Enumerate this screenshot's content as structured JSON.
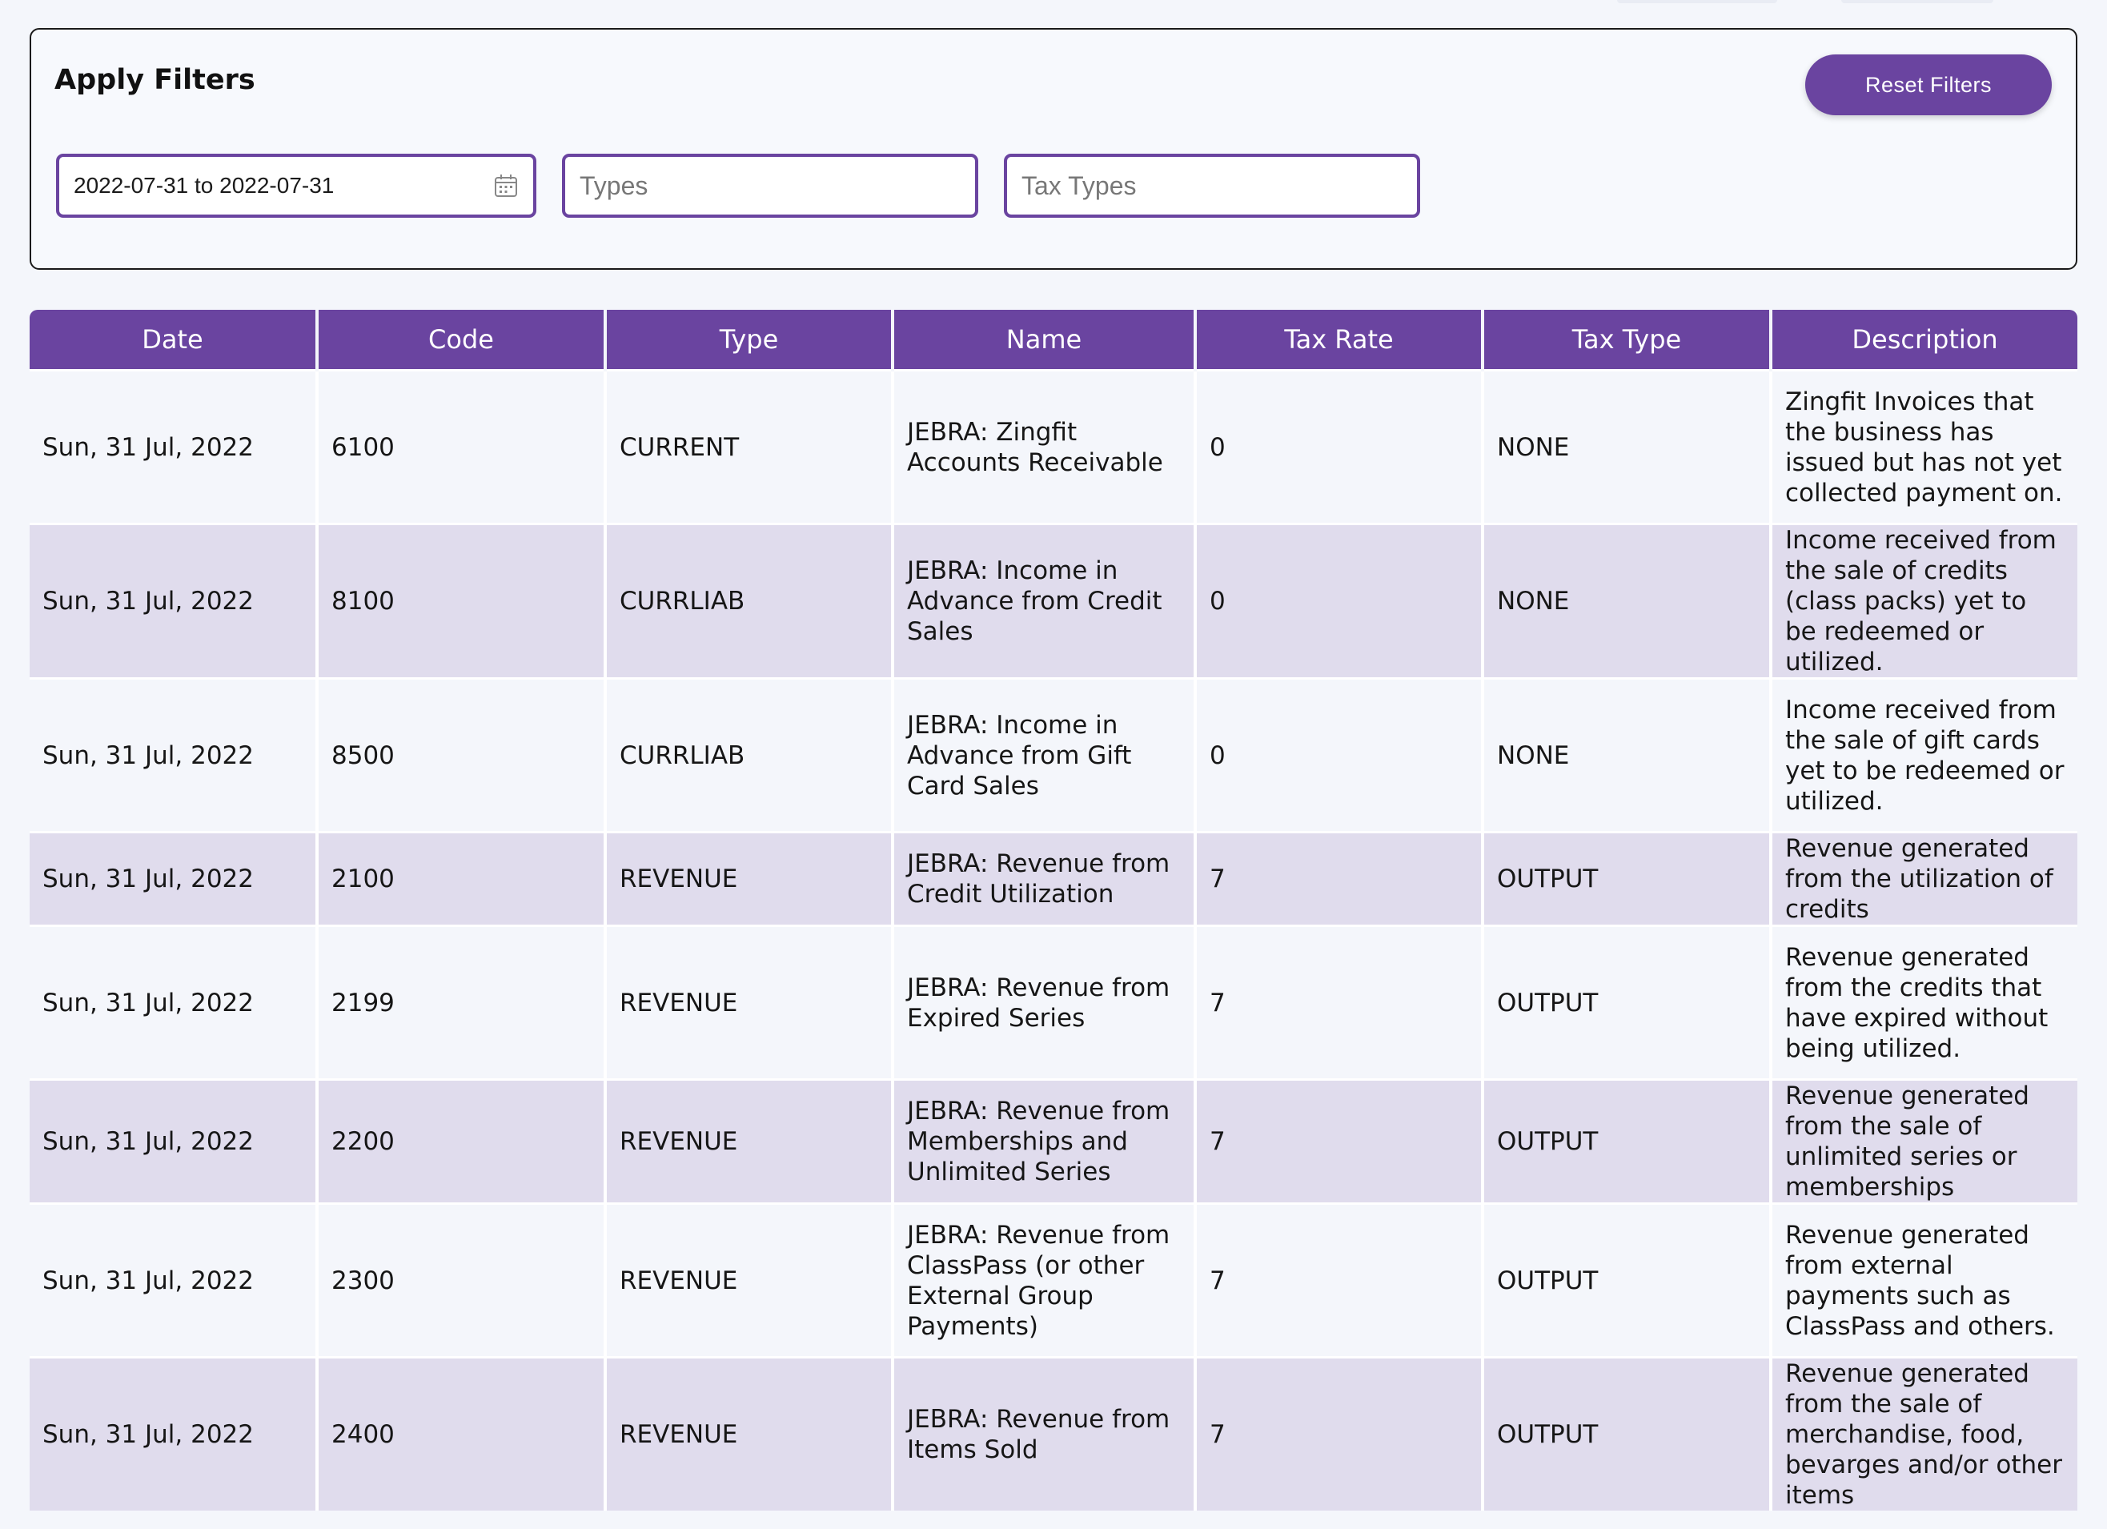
{
  "filters": {
    "title": "Apply Filters",
    "reset_label": "Reset Filters",
    "date_range": "2022-07-31 to 2022-07-31",
    "types_placeholder": "Types",
    "tax_types_placeholder": "Tax Types",
    "calendar_icon": "calendar-icon"
  },
  "table": {
    "headers": [
      "Date",
      "Code",
      "Type",
      "Name",
      "Tax Rate",
      "Tax Type",
      "Description"
    ],
    "rows": [
      {
        "date": "Sun, 31 Jul, 2022",
        "code": "6100",
        "type": "CURRENT",
        "name": "JEBRA: Zingfit Accounts Receivable",
        "tax_rate": "0",
        "tax_type": "NONE",
        "description": "Zingfit Invoices that the business has issued but has not yet collected payment on."
      },
      {
        "date": "Sun, 31 Jul, 2022",
        "code": "8100",
        "type": "CURRLIAB",
        "name": "JEBRA: Income in Advance from Credit Sales",
        "tax_rate": "0",
        "tax_type": "NONE",
        "description": "Income received from the sale of credits (class packs) yet to be redeemed or utilized."
      },
      {
        "date": "Sun, 31 Jul, 2022",
        "code": "8500",
        "type": "CURRLIAB",
        "name": "JEBRA: Income in Advance from Gift Card Sales",
        "tax_rate": "0",
        "tax_type": "NONE",
        "description": "Income received from the sale of gift cards yet to be redeemed or utilized."
      },
      {
        "date": "Sun, 31 Jul, 2022",
        "code": "2100",
        "type": "REVENUE",
        "name": "JEBRA: Revenue from Credit Utilization",
        "tax_rate": "7",
        "tax_type": "OUTPUT",
        "description": "Revenue generated from the utilization of credits"
      },
      {
        "date": "Sun, 31 Jul, 2022",
        "code": "2199",
        "type": "REVENUE",
        "name": "JEBRA: Revenue from Expired Series",
        "tax_rate": "7",
        "tax_type": "OUTPUT",
        "description": "Revenue generated from the credits that have expired without being utilized."
      },
      {
        "date": "Sun, 31 Jul, 2022",
        "code": "2200",
        "type": "REVENUE",
        "name": "JEBRA: Revenue from Memberships and Unlimited Series",
        "tax_rate": "7",
        "tax_type": "OUTPUT",
        "description": "Revenue generated from the sale of unlimited series or memberships"
      },
      {
        "date": "Sun, 31 Jul, 2022",
        "code": "2300",
        "type": "REVENUE",
        "name": "JEBRA: Revenue from ClassPass (or other External Group Payments)",
        "tax_rate": "7",
        "tax_type": "OUTPUT",
        "description": "Revenue generated from external payments such as ClassPass and others."
      },
      {
        "date": "Sun, 31 Jul, 2022",
        "code": "2400",
        "type": "REVENUE",
        "name": "JEBRA: Revenue from Items Sold",
        "tax_rate": "7",
        "tax_type": "OUTPUT",
        "description": "Revenue generated from the sale of merchandise, food, bevarges and/or other items"
      }
    ]
  },
  "colors": {
    "accent": "#6a44a0",
    "row_alt": "#e0dced",
    "row_base": "#f4f6fb"
  }
}
